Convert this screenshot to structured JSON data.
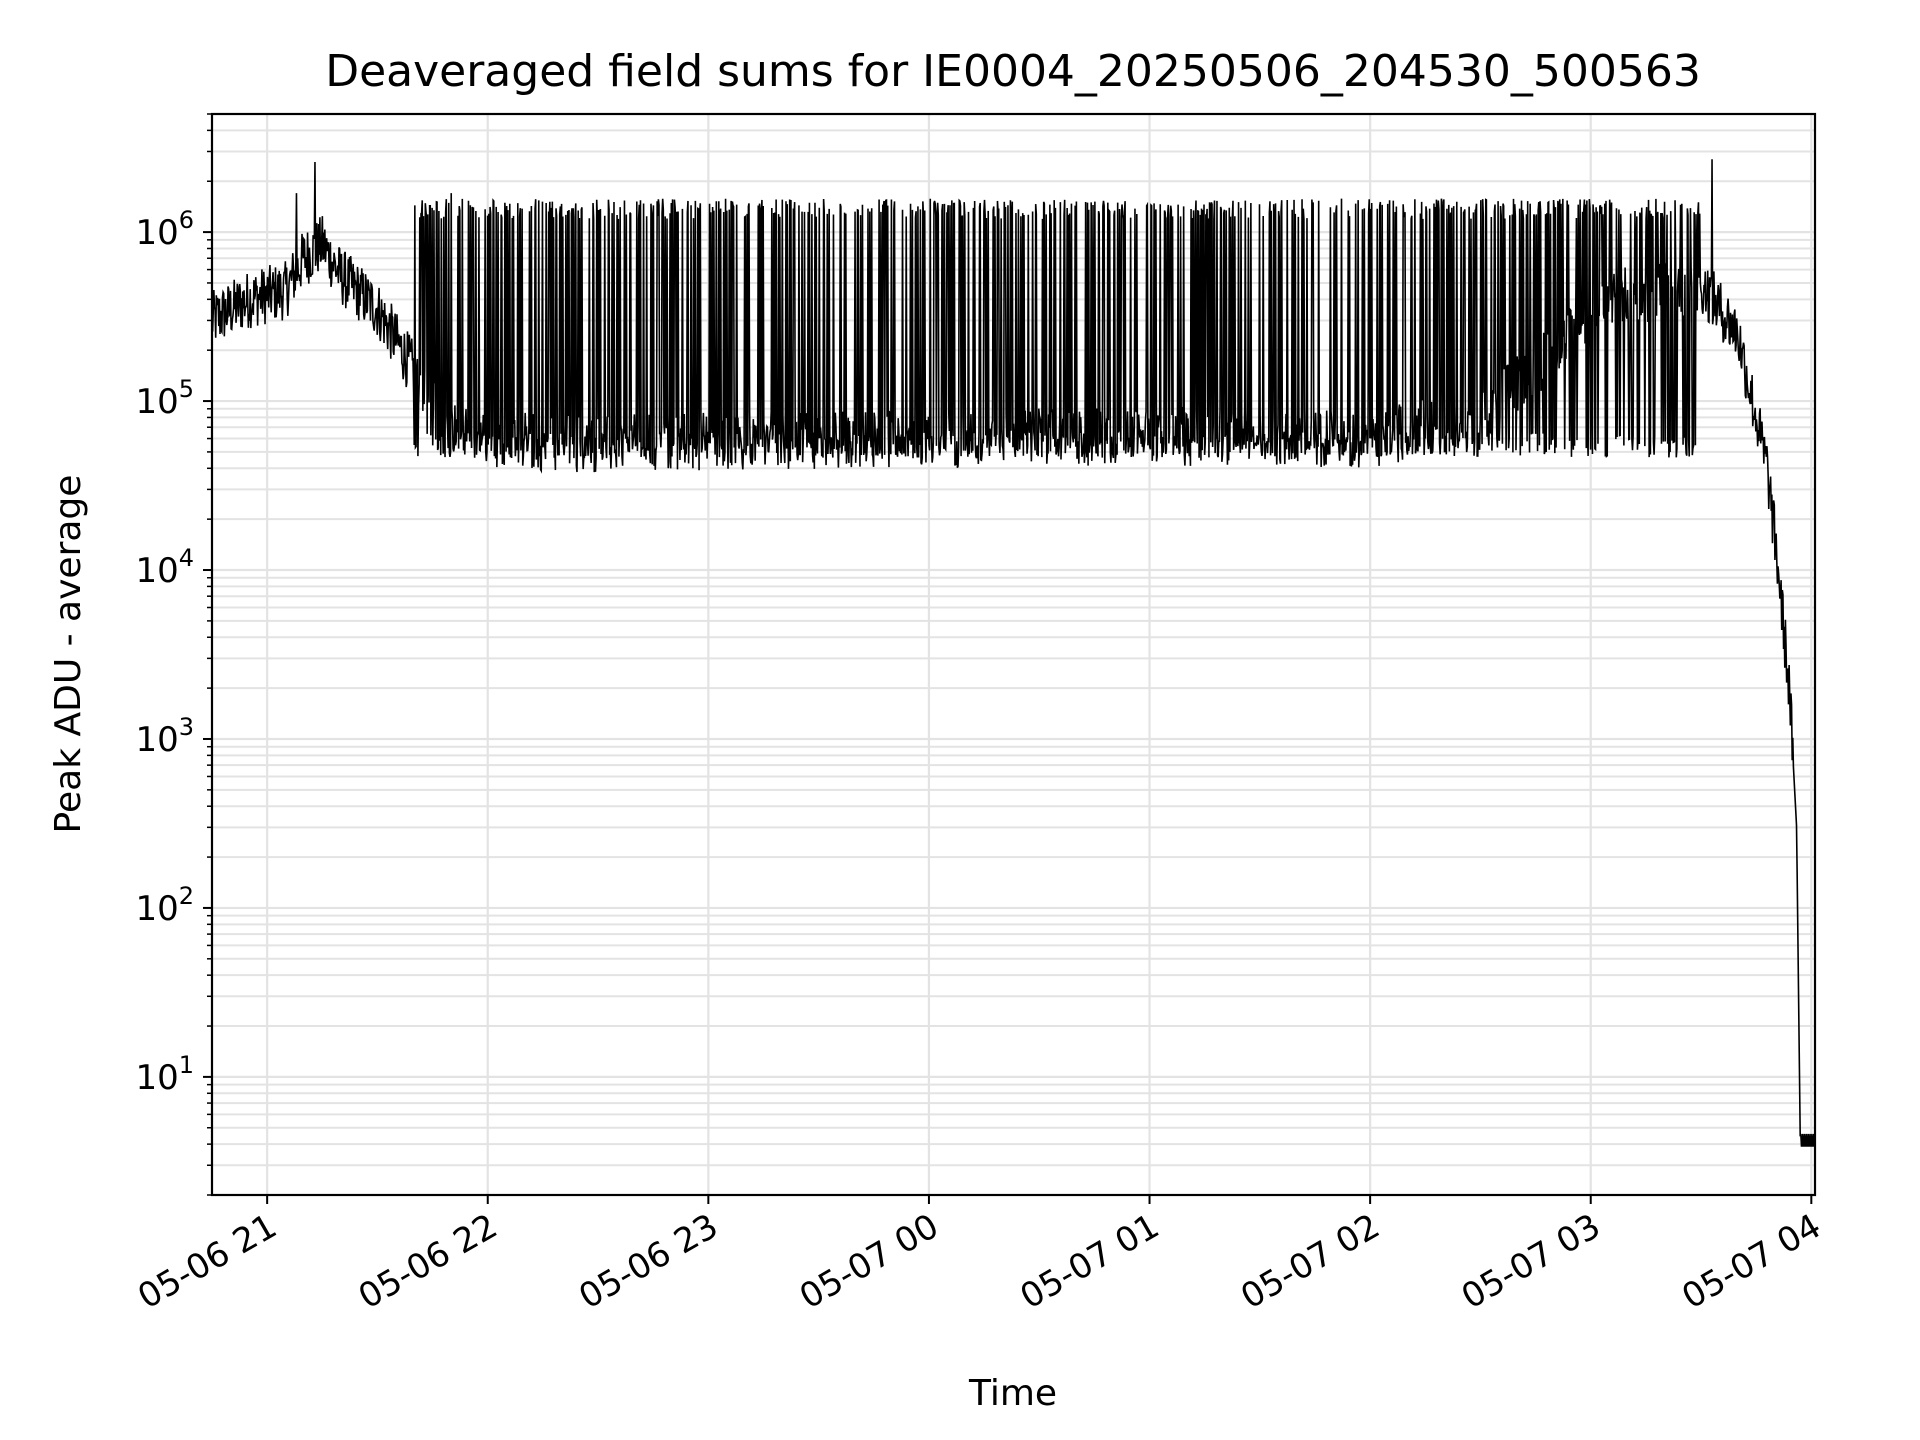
{
  "chart_data": {
    "type": "line",
    "title": "Deaveraged field sums for IE0004_20250506_204530_500563",
    "xlabel": "Time",
    "ylabel": "Peak ADU - average",
    "yscale": "log",
    "ylim": [
      2,
      5000000
    ],
    "xlim": [
      "2025-05-06 20:45",
      "2025-05-07 04:01"
    ],
    "x_ticks": [
      {
        "t": "2025-05-06 21:00",
        "label": "05-06 21"
      },
      {
        "t": "2025-05-06 22:00",
        "label": "05-06 22"
      },
      {
        "t": "2025-05-06 23:00",
        "label": "05-06 23"
      },
      {
        "t": "2025-05-07 00:00",
        "label": "05-07 00"
      },
      {
        "t": "2025-05-07 01:00",
        "label": "05-07 01"
      },
      {
        "t": "2025-05-07 02:00",
        "label": "05-07 02"
      },
      {
        "t": "2025-05-07 03:00",
        "label": "05-07 03"
      },
      {
        "t": "2025-05-07 04:00",
        "label": "05-07 04"
      }
    ],
    "y_ticks": [
      {
        "value": 10,
        "base": "10",
        "exp": "1"
      },
      {
        "value": 100,
        "base": "10",
        "exp": "2"
      },
      {
        "value": 1000,
        "base": "10",
        "exp": "3"
      },
      {
        "value": 10000,
        "base": "10",
        "exp": "4"
      },
      {
        "value": 100000,
        "base": "10",
        "exp": "5"
      },
      {
        "value": 1000000,
        "base": "10",
        "exp": "6"
      }
    ],
    "grid": true,
    "line_color": "#000000",
    "series": [
      {
        "points": [
          [
            "2025-05-06 20:45",
            300000
          ],
          [
            "2025-05-06 20:55",
            400000
          ],
          [
            "2025-05-06 21:05",
            450000
          ],
          [
            "2025-05-06 21:10",
            700000
          ],
          [
            "2025-05-06 21:15",
            850000
          ],
          [
            "2025-05-06 21:20",
            550000
          ],
          [
            "2025-05-06 21:30",
            350000
          ],
          [
            "2025-05-06 21:40",
            150000
          ],
          [
            "2025-05-06 21:50",
            70000
          ],
          [
            "2025-05-06 22:00",
            60000
          ],
          [
            "2025-05-06 22:30",
            55000
          ],
          [
            "2025-05-06 23:00",
            58000
          ],
          [
            "2025-05-07 00:00",
            60000
          ],
          [
            "2025-05-07 01:00",
            62000
          ],
          [
            "2025-05-07 02:00",
            60000
          ],
          [
            "2025-05-07 02:30",
            80000
          ],
          [
            "2025-05-07 02:50",
            200000
          ],
          [
            "2025-05-07 03:05",
            400000
          ],
          [
            "2025-05-07 03:30",
            500000
          ],
          [
            "2025-05-07 03:40",
            250000
          ],
          [
            "2025-05-07 03:45",
            80000
          ],
          [
            "2025-05-07 03:48",
            40000
          ],
          [
            "2025-05-07 03:51",
            10000
          ],
          [
            "2025-05-07 03:54",
            2000
          ],
          [
            "2025-05-07 03:56",
            300
          ],
          [
            "2025-05-07 03:57",
            4
          ],
          [
            "2025-05-07 04:01",
            4
          ]
        ],
        "spike_range": [
          "2025-05-06 21:40",
          "2025-05-07 03:30"
        ],
        "spike_top": 1300000,
        "spike_bottom": 55000,
        "spike_peaks": [
          [
            "2025-05-06 21:08",
            1700000
          ],
          [
            "2025-05-06 21:13",
            2600000
          ],
          [
            "2025-05-06 21:50",
            1700000
          ],
          [
            "2025-05-07 03:33",
            2700000
          ]
        ]
      }
    ]
  }
}
